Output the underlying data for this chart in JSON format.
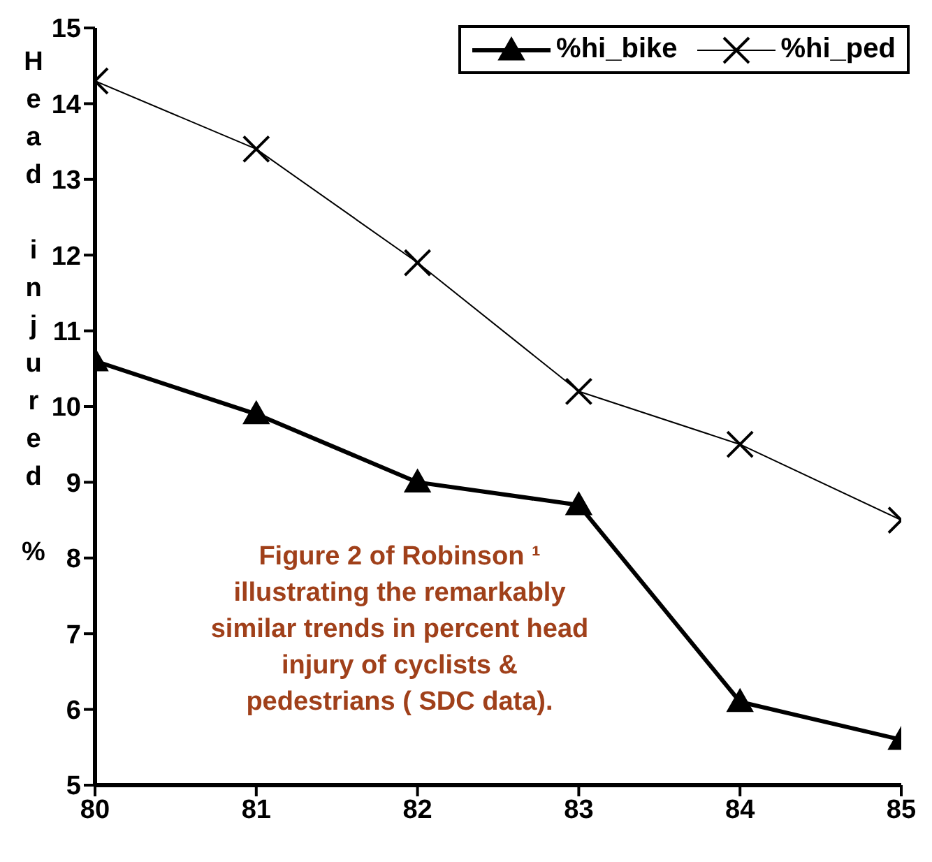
{
  "chart_data": {
    "type": "line",
    "x": [
      80,
      81,
      82,
      83,
      84,
      85
    ],
    "xlim": [
      80,
      85
    ],
    "xticks": [
      80,
      81,
      82,
      83,
      84,
      85
    ],
    "ylim": [
      5,
      15
    ],
    "yticks": [
      5,
      6,
      7,
      8,
      9,
      10,
      11,
      12,
      13,
      14,
      15
    ],
    "ylabel": "Head injured %",
    "legend": "top right",
    "grid": false,
    "line_style": "solid",
    "series": [
      {
        "name": "%hi_bike",
        "color": "#000000",
        "marker": "triangle",
        "values": [
          10.6,
          9.9,
          9.0,
          8.7,
          6.1,
          5.6
        ]
      },
      {
        "name": "%hi_ped",
        "color": "#000000",
        "marker": "cross",
        "values": [
          14.3,
          13.4,
          11.9,
          10.2,
          9.5,
          8.5
        ]
      }
    ],
    "annotations": [
      "Figure 2 of Robinson ¹ illustrating the remarkably similar trends in percent head injury of cyclists & pedestrians ( SDC data)."
    ]
  }
}
